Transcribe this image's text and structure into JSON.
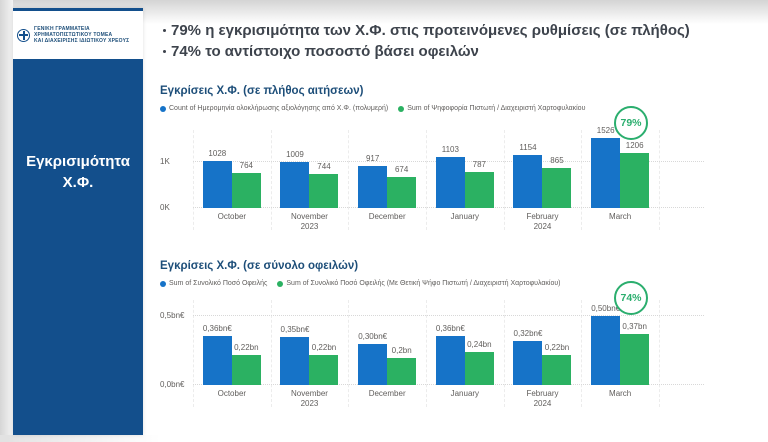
{
  "colors": {
    "bar_blue": "#1673C8",
    "bar_green": "#2BB162",
    "badge_green": "#2BAE6E",
    "sidebar_navy": "#134F8C",
    "title_navy": "#1D4E79",
    "header_text": "#3D434C"
  },
  "sidebar": {
    "logo_line1": "ΓΕΝΙΚΗ ΓΡΑΜΜΑΤΕΙΑ ΧΡΗΜΑΤΟΠΙΣΤΩΤΙΚΟΥ ΤΟΜΕΑ",
    "logo_line2": "ΚΑΙ ΔΙΑΧΕΙΡΙΣΗΣ ΙΔΙΩΤΙΚΟΥ ΧΡΕΟΥΣ",
    "title_line1": "Εγκρισιμότητα",
    "title_line2": "Χ.Φ."
  },
  "header": {
    "bullet1": "79% η εγκρισιμότητα των Χ.Φ. στις προτεινόμενες ρυθμίσεις (σε πλήθος)",
    "bullet2": "74% το αντίστοιχο ποσοστό βάσει οφειλών"
  },
  "chart_data": [
    {
      "type": "bar",
      "title": "Εγκρίσεις Χ.Φ. (σε πλήθος αιτήσεων)",
      "categories": [
        "October",
        "November",
        "December",
        "January",
        "February",
        "March"
      ],
      "category_sublabels": [
        "",
        "2023",
        "",
        "",
        "2024",
        ""
      ],
      "series": [
        {
          "name": "Count of Ημερομηνία ολοκλήρωσης αξιολόγησης από Χ.Φ. (πολυμερή)",
          "color": "#1673C8",
          "values": [
            1028,
            1009,
            917,
            1103,
            1154,
            1526
          ],
          "labels": [
            "1028",
            "1009",
            "917",
            "1103",
            "1154",
            "1526"
          ]
        },
        {
          "name": "Sum of Ψηφοφορία Πιστωτή / Διαχειριστή Χαρτοφυλακίου",
          "color": "#2BB162",
          "values": [
            764,
            744,
            674,
            787,
            865,
            1206
          ],
          "labels": [
            "764",
            "744",
            "674",
            "787",
            "865",
            "1206"
          ]
        }
      ],
      "y_ticks": [
        {
          "label": "0K",
          "value": 0
        },
        {
          "label": "1K",
          "value": 1000
        }
      ],
      "ylim": [
        0,
        1700
      ],
      "grid": "dotted horizontal at ticks, dashed vertical category separators",
      "legend_position": "top",
      "badge": "79%"
    },
    {
      "type": "bar",
      "title": "Εγκρίσεις Χ.Φ. (σε σύνολο οφειλών)",
      "categories": [
        "October",
        "November",
        "December",
        "January",
        "February",
        "March"
      ],
      "category_sublabels": [
        "",
        "2023",
        "",
        "",
        "2024",
        ""
      ],
      "series": [
        {
          "name": "Sum of Συνολικό Ποσό Οφειλής",
          "color": "#1673C8",
          "values": [
            0.36,
            0.35,
            0.3,
            0.36,
            0.32,
            0.5
          ],
          "labels": [
            "0,36bn€",
            "0,35bn€",
            "0,30bn€",
            "0,36bn€",
            "0,32bn€",
            "0,50bn€"
          ]
        },
        {
          "name": "Sum of Συνολικό Ποσό Οφειλής (Με Θετική Ψήφο Πιστωτή / Διαχειριστή Χαρτοφυλακίου)",
          "color": "#2BB162",
          "values": [
            0.22,
            0.22,
            0.2,
            0.24,
            0.22,
            0.37
          ],
          "labels": [
            "0,22bn",
            "0,22bn",
            "0,2bn",
            "0,24bn",
            "0,22bn",
            "0,37bn"
          ]
        }
      ],
      "y_ticks": [
        {
          "label": "0,0bn€",
          "value": 0
        },
        {
          "label": "0,5bn€",
          "value": 0.5
        }
      ],
      "ylim": [
        0,
        0.62
      ],
      "grid": "dotted horizontal at ticks, dashed vertical category separators",
      "legend_position": "top",
      "badge": "74%"
    }
  ]
}
